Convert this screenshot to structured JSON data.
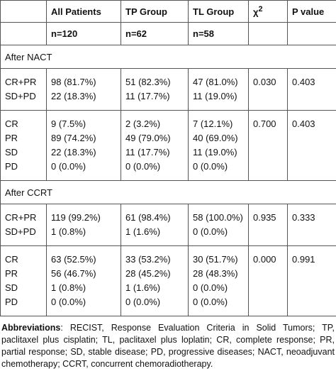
{
  "table": {
    "header": {
      "columns": [
        "All Patients",
        "TP Group",
        "TL Group",
        {
          "main": "χ",
          "sup": "2"
        },
        "P value"
      ],
      "counts": [
        "n=120",
        "n=62",
        "n=58"
      ]
    },
    "sections": [
      {
        "title": "After NACT",
        "groups": [
          {
            "rows": [
              [
                "CR+PR",
                "98 (81.7%)",
                "51 (82.3%)",
                "47 (81.0%)"
              ],
              [
                "SD+PD",
                "22 (18.3%)",
                "11 (17.7%)",
                "11 (19.0%)"
              ]
            ],
            "chi2": "0.030",
            "p": "0.403"
          },
          {
            "rows": [
              [
                "CR",
                "9 (7.5%)",
                "2 (3.2%)",
                "7 (12.1%)"
              ],
              [
                "PR",
                "89 (74.2%)",
                "49 (79.0%)",
                "40 (69.0%)"
              ],
              [
                "SD",
                "22 (18.3%)",
                "11 (17.7%)",
                "11 (19.0%)"
              ],
              [
                "PD",
                "0 (0.0%)",
                "0 (0.0%)",
                "0 (0.0%)"
              ]
            ],
            "chi2": "0.700",
            "p": "0.403"
          }
        ]
      },
      {
        "title": "After CCRT",
        "groups": [
          {
            "rows": [
              [
                "CR+PR",
                "119 (99.2%)",
                "61 (98.4%)",
                "58 (100.0%)"
              ],
              [
                "SD+PD",
                "1 (0.8%)",
                "1 (1.6%)",
                "0 (0.0%)"
              ]
            ],
            "chi2": "0.935",
            "p": "0.333"
          },
          {
            "rows": [
              [
                "CR",
                "63 (52.5%)",
                "33 (53.2%)",
                "30 (51.7%)"
              ],
              [
                "PR",
                "56 (46.7%)",
                "28 (45.2%)",
                "28 (48.3%)"
              ],
              [
                "SD",
                "1 (0.8%)",
                "1 (1.6%)",
                "0 (0.0%)"
              ],
              [
                "PD",
                "0 (0.0%)",
                "0 (0.0%)",
                "0 (0.0%)"
              ]
            ],
            "chi2": "0.000",
            "p": "0.991"
          }
        ]
      }
    ]
  },
  "footnote": {
    "label": "Abbreviations",
    "text": ": RECIST, Response Evaluation Criteria in Solid Tumors; TP, paclitaxel plus cisplatin; TL, paclitaxel plus loplatin; CR, complete response; PR, partial response; SD, stable disease; PD, progressive diseases; NACT, neoadjuvant chemotherapy; CCRT, concurrent chemoradiotherapy."
  }
}
